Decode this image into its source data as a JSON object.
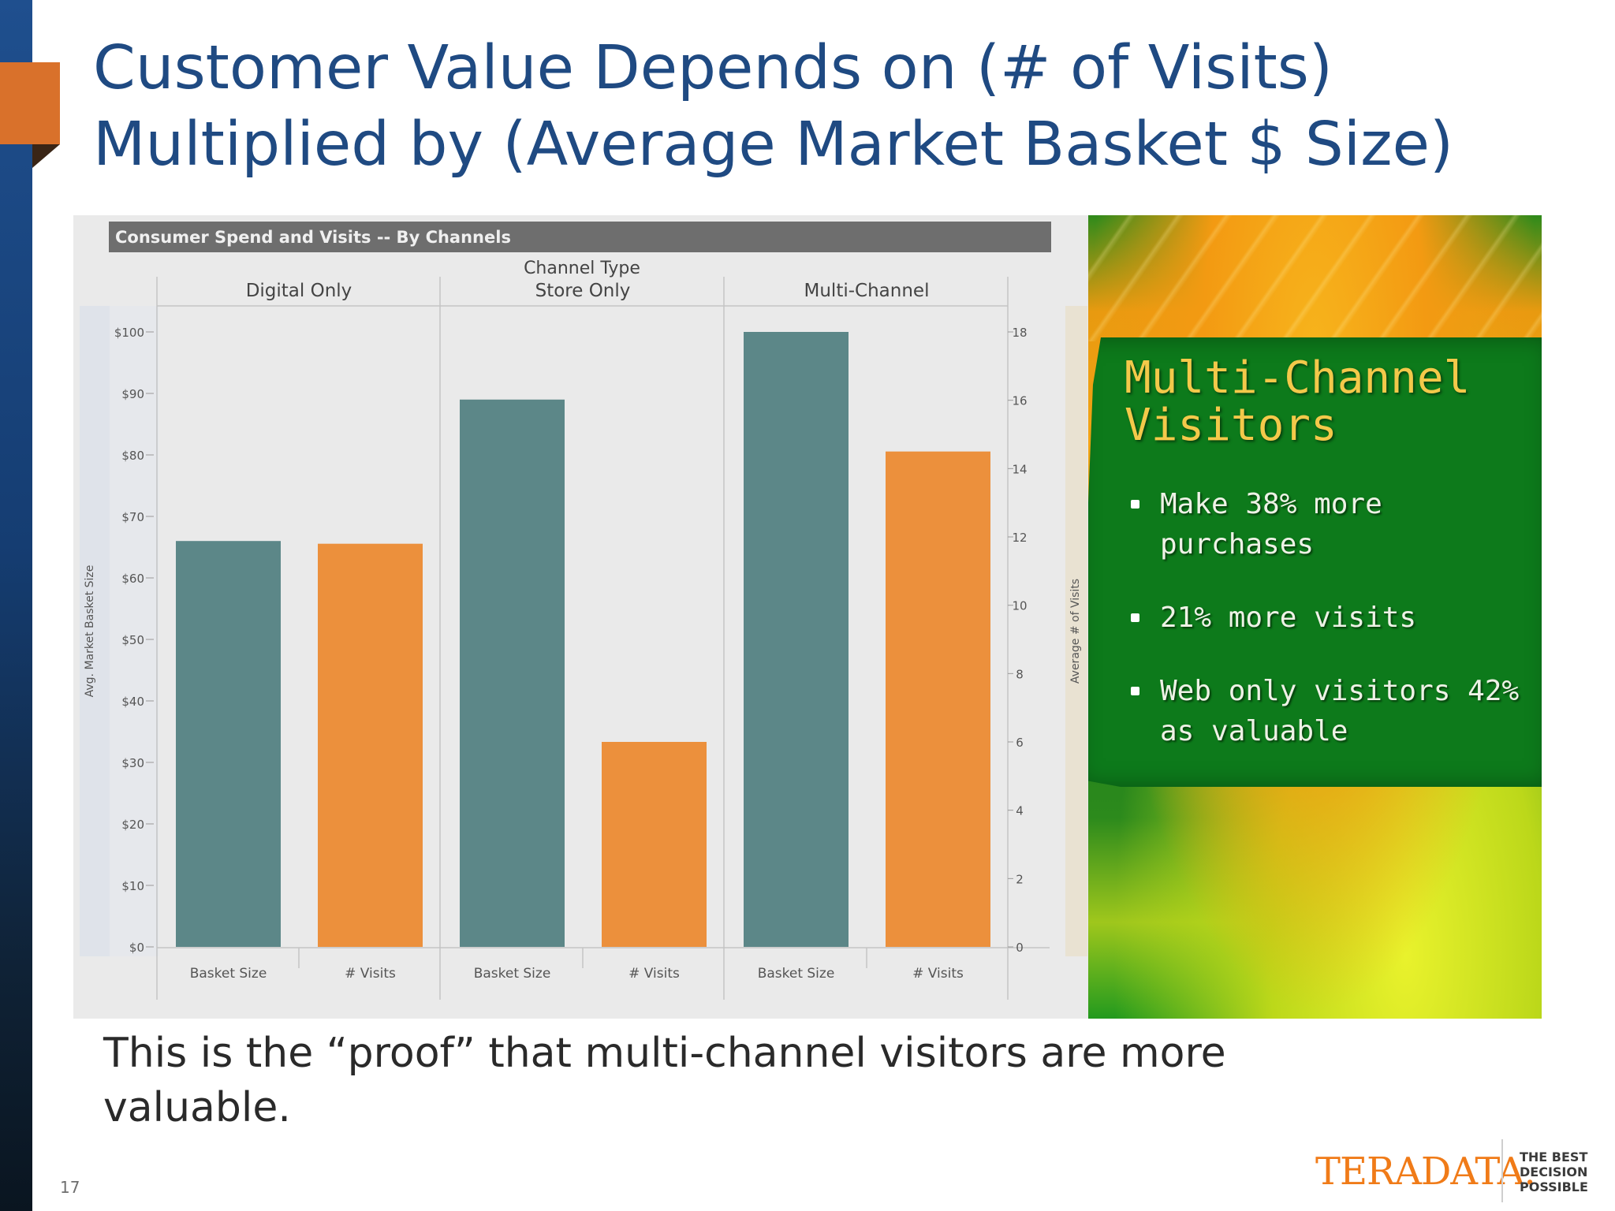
{
  "slide": {
    "title_lines": [
      "Customer Value Depends on (# of Visits)",
      "Multiplied by (Average Market Basket $ Size)"
    ],
    "caption": "This is the “proof” that multi-channel visitors are more valuable.",
    "page_number": "17"
  },
  "chart_data": {
    "type": "bar",
    "title": "Consumer Spend and Visits -- By Channels",
    "column_header": "Channel Type",
    "groups": [
      "Digital Only",
      "Store Only",
      "Multi-Channel"
    ],
    "measures": [
      "Basket Size",
      "# Visits"
    ],
    "series": [
      {
        "name": "Basket Size",
        "axis": "left",
        "values": [
          66,
          89,
          100
        ]
      },
      {
        "name": "# Visits",
        "axis": "right",
        "values": [
          11.8,
          6.0,
          14.5
        ]
      }
    ],
    "left_axis": {
      "label": "Avg. Market Basket Size",
      "min": 0,
      "max": 100,
      "step": 10,
      "ticks": [
        "$0",
        "$10",
        "$20",
        "$30",
        "$40",
        "$50",
        "$60",
        "$70",
        "$80",
        "$90",
        "$100"
      ]
    },
    "right_axis": {
      "label": "Average # of Visits",
      "min": 0,
      "max": 18,
      "step": 2,
      "ticks": [
        "0",
        "2",
        "4",
        "6",
        "8",
        "10",
        "12",
        "14",
        "16",
        "18"
      ]
    },
    "colors": {
      "Basket Size": "#5c8788",
      "# Visits": "#ec903c"
    }
  },
  "promo": {
    "title_lines": [
      "Multi-Channel",
      "Visitors"
    ],
    "bullets": [
      "Make 38% more purchases",
      "21% more visits",
      "Web only visitors 42% as valuable"
    ]
  },
  "logo": {
    "wordmark": "TERADATA.",
    "tagline_lines": [
      "THE BEST",
      "DECISION",
      "POSSIBLE"
    ]
  }
}
